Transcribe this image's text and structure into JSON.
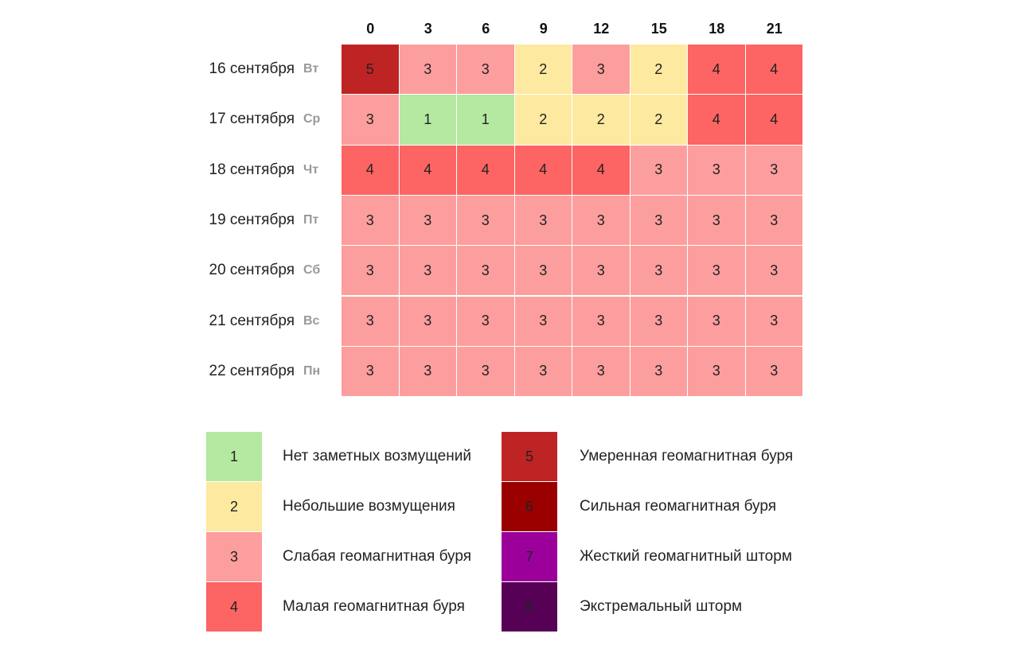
{
  "table": {
    "columns": [
      0,
      3,
      6,
      9,
      12,
      15,
      18,
      21
    ],
    "rows": [
      {
        "date": "16 сентября",
        "weekday": "Вт",
        "values": [
          5,
          3,
          3,
          2,
          3,
          2,
          4,
          4
        ]
      },
      {
        "date": "17 сентября",
        "weekday": "Ср",
        "values": [
          3,
          1,
          1,
          2,
          2,
          2,
          4,
          4
        ]
      },
      {
        "date": "18 сентября",
        "weekday": "Чт",
        "values": [
          4,
          4,
          4,
          4,
          4,
          3,
          3,
          3
        ]
      },
      {
        "date": "19 сентября",
        "weekday": "Пт",
        "values": [
          3,
          3,
          3,
          3,
          3,
          3,
          3,
          3
        ]
      },
      {
        "date": "20 сентября",
        "weekday": "Сб",
        "values": [
          3,
          3,
          3,
          3,
          3,
          3,
          3,
          3
        ]
      },
      {
        "date": "21 сентября",
        "weekday": "Вс",
        "values": [
          3,
          3,
          3,
          3,
          3,
          3,
          3,
          3
        ]
      },
      {
        "date": "22 сентября",
        "weekday": "Пн",
        "values": [
          3,
          3,
          3,
          3,
          3,
          3,
          3,
          3
        ]
      }
    ]
  },
  "legend": [
    {
      "level": 1,
      "label": "Нет заметных возмущений",
      "color": "#b5e8a0"
    },
    {
      "level": 2,
      "label": "Небольшие возмущения",
      "color": "#fde9a0"
    },
    {
      "level": 3,
      "label": "Слабая геомагнитная буря",
      "color": "#fd9e9e"
    },
    {
      "level": 4,
      "label": "Малая геомагнитная буря",
      "color": "#fd6464"
    },
    {
      "level": 5,
      "label": "Умеренная геомагнитная буря",
      "color": "#be2423"
    },
    {
      "level": 6,
      "label": "Сильная геомагнитная буря",
      "color": "#9a0000"
    },
    {
      "level": 7,
      "label": "Жесткий геомагнитный шторм",
      "color": "#9b009b"
    },
    {
      "level": 8,
      "label": "Экстремальный шторм",
      "color": "#560056"
    }
  ]
}
